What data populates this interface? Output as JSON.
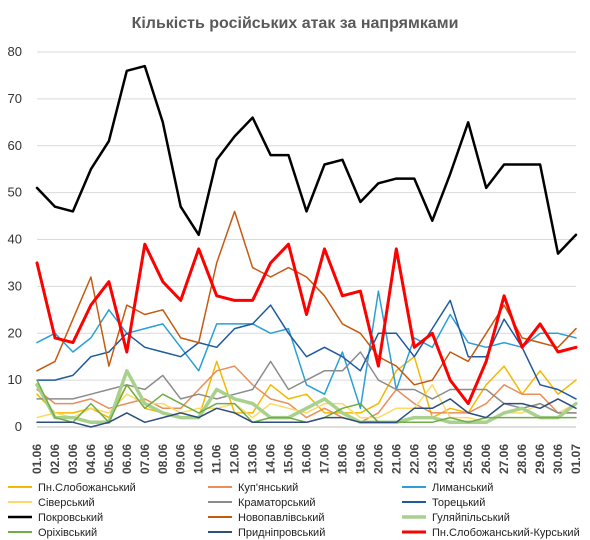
{
  "chart_data": {
    "type": "line",
    "title": "Кількість російських атак за напрямками",
    "xlabel": "",
    "ylabel": "",
    "ylim": [
      0,
      80
    ],
    "yticks": [
      0,
      10,
      20,
      30,
      40,
      50,
      60,
      70,
      80
    ],
    "grid": "horizontal",
    "legend_position": "bottom",
    "categories": [
      "01.06",
      "02.06",
      "03.06",
      "04.06",
      "05.06",
      "06.06",
      "07.06",
      "08.06",
      "09.06",
      "10.06",
      "11.06",
      "12.06",
      "13.06",
      "14.06",
      "15.06",
      "16.06",
      "17.06",
      "18.06",
      "19.06",
      "20.06",
      "21.06",
      "22.06",
      "23.06",
      "24.06",
      "25.06",
      "26.06",
      "27.06",
      "28.06",
      "29.06",
      "30.06",
      "01.07"
    ],
    "x_tick_labels": [
      "01.06",
      "02.06",
      "03.06",
      "04.06",
      "05.06",
      "06.06",
      "07.06",
      "08.06",
      "09.06",
      "10.06",
      "11.06",
      "12.06",
      "13.06",
      "14.06",
      "15.06",
      "16.06",
      "17.06",
      "18.06",
      "19.06",
      "20.06",
      "21.06",
      "22.06",
      "23.06",
      "24.06",
      "25.06",
      "26.06",
      "27.06",
      "28.06",
      "29.06",
      "30.06",
      "01.07"
    ],
    "x_values": [
      0,
      1,
      2,
      3,
      4,
      5,
      6,
      7,
      8,
      9,
      10,
      11,
      12,
      13,
      14,
      15,
      16,
      17,
      18,
      19,
      20,
      21,
      22,
      23,
      24,
      25,
      26,
      27,
      28,
      29,
      30
    ],
    "series": [
      {
        "name": "Пн.Слобожанський",
        "color": "#F5B800",
        "width": 1.5,
        "values": [
          7,
          3,
          3,
          4,
          2,
          9,
          4,
          3,
          2,
          2,
          14,
          3,
          3,
          9,
          6,
          7,
          3,
          3,
          3,
          5,
          12,
          15,
          2,
          4,
          3,
          9,
          13,
          7,
          12,
          7,
          10
        ]
      },
      {
        "name": "Куп'янський",
        "color": "#E88F5C",
        "width": 1.5,
        "values": [
          8,
          5,
          5,
          6,
          4,
          5,
          6,
          4,
          4,
          8,
          12,
          13,
          9,
          6,
          5,
          2,
          4,
          2,
          1,
          3,
          8,
          5,
          3,
          3,
          3,
          5,
          9,
          7,
          7,
          3,
          3
        ]
      },
      {
        "name": "Лиманський",
        "color": "#2A9FD8",
        "width": 1.5,
        "values": [
          18,
          20,
          16,
          19,
          25,
          20,
          21,
          22,
          17,
          12,
          22,
          22,
          22,
          20,
          21,
          9,
          7,
          16,
          4,
          29,
          8,
          19,
          17,
          24,
          18,
          17,
          18,
          17,
          20,
          20,
          19
        ]
      },
      {
        "name": "Сіверський",
        "color": "#FFD966",
        "width": 1.5,
        "values": [
          2,
          3,
          2,
          4,
          3,
          7,
          5,
          5,
          3,
          4,
          4,
          5,
          2,
          5,
          4,
          3,
          5,
          5,
          2,
          2,
          4,
          4,
          9,
          2,
          2,
          1,
          3,
          3,
          5,
          3,
          5
        ]
      },
      {
        "name": "Краматорський",
        "color": "#8C8C8C",
        "width": 1.5,
        "values": [
          6,
          6,
          6,
          7,
          8,
          9,
          8,
          11,
          6,
          7,
          6,
          7,
          8,
          14,
          8,
          10,
          12,
          12,
          16,
          10,
          8,
          8,
          6,
          8,
          8,
          8,
          5,
          4,
          5,
          3,
          3
        ]
      },
      {
        "name": "Торецький",
        "color": "#1F5A9E",
        "width": 1.5,
        "values": [
          10,
          10,
          11,
          15,
          16,
          20,
          17,
          16,
          15,
          18,
          17,
          21,
          22,
          26,
          20,
          15,
          17,
          15,
          12,
          20,
          20,
          15,
          21,
          27,
          15,
          15,
          23,
          17,
          9,
          8,
          6
        ]
      },
      {
        "name": "Покровський",
        "color": "#000000",
        "width": 2.5,
        "values": [
          51,
          47,
          46,
          55,
          61,
          76,
          77,
          65,
          47,
          41,
          57,
          62,
          66,
          58,
          58,
          46,
          56,
          57,
          48,
          52,
          53,
          53,
          44,
          54,
          65,
          51,
          56,
          56,
          56,
          37,
          41
        ]
      },
      {
        "name": "Новопавлівський",
        "color": "#C55A11",
        "width": 1.5,
        "values": [
          12,
          14,
          23,
          32,
          13,
          26,
          24,
          25,
          19,
          18,
          35,
          46,
          34,
          32,
          34,
          32,
          28,
          22,
          20,
          15,
          13,
          9,
          10,
          16,
          14,
          20,
          26,
          19,
          18,
          17,
          21
        ]
      },
      {
        "name": "Гуляйпільський",
        "color": "#A9D18E",
        "width": 3.5,
        "values": [
          9,
          2,
          2,
          1,
          1,
          12,
          5,
          3,
          2,
          2,
          8,
          6,
          5,
          2,
          2,
          4,
          6,
          3,
          1,
          1,
          1,
          2,
          2,
          1,
          1,
          1,
          3,
          4,
          2,
          2,
          5
        ]
      },
      {
        "name": "Оріхівський",
        "color": "#70AD47",
        "width": 1.5,
        "values": [
          10,
          2,
          1,
          5,
          1,
          9,
          4,
          7,
          5,
          3,
          5,
          5,
          1,
          2,
          2,
          1,
          2,
          4,
          5,
          1,
          1,
          1,
          1,
          2,
          1,
          2,
          2,
          2,
          2,
          2,
          2
        ]
      },
      {
        "name": "Придніпровський",
        "color": "#2E4E7E",
        "width": 1.5,
        "values": [
          1,
          1,
          1,
          0,
          1,
          3,
          1,
          2,
          3,
          2,
          4,
          3,
          1,
          1,
          1,
          1,
          2,
          2,
          1,
          1,
          1,
          4,
          4,
          6,
          3,
          2,
          5,
          5,
          4,
          6,
          4
        ]
      },
      {
        "name": "Пн.Слобожанський-Курський",
        "color": "#FF0000",
        "width": 3,
        "values": [
          35,
          19,
          18,
          26,
          31,
          16,
          39,
          31,
          27,
          38,
          28,
          27,
          27,
          35,
          39,
          24,
          38,
          28,
          29,
          13,
          38,
          17,
          20,
          10,
          5,
          14,
          28,
          17,
          22,
          16,
          17
        ]
      }
    ]
  }
}
